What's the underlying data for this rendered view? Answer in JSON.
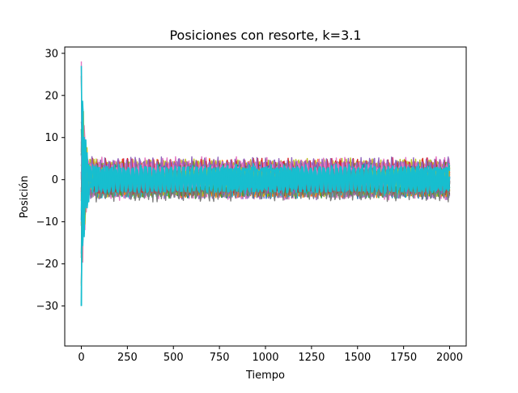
{
  "chart_data": {
    "type": "line",
    "title": "Posiciones con resorte, k=3.1",
    "xlabel": "Tiempo",
    "ylabel": "Posición",
    "xlim": [
      -90,
      2090
    ],
    "ylim": [
      -39.5,
      31.5
    ],
    "x_ticks": [
      0,
      250,
      500,
      750,
      1000,
      1250,
      1500,
      1750,
      2000
    ],
    "x_tick_labels": [
      "0",
      "250",
      "500",
      "750",
      "1000",
      "1250",
      "1500",
      "1750",
      "2000"
    ],
    "y_ticks": [
      -30,
      -20,
      -10,
      0,
      10,
      20,
      30
    ],
    "y_tick_labels": [
      "−30",
      "−20",
      "−10",
      "0",
      "10",
      "20",
      "30"
    ],
    "grid": false,
    "legend": "none",
    "x_range": [
      0,
      2000
    ],
    "initial_spread": {
      "min": -36,
      "max": 28.5
    },
    "steady_state_band": {
      "inner": [
        -2.0,
        2.0
      ],
      "outer": [
        -4.5,
        5.0
      ]
    },
    "series_colors": [
      "#1f77b4",
      "#ff7f0e",
      "#2ca02c",
      "#d62728",
      "#9467bd",
      "#8c564b",
      "#e377c2",
      "#7f7f7f",
      "#bcbd22",
      "#17becf"
    ]
  }
}
